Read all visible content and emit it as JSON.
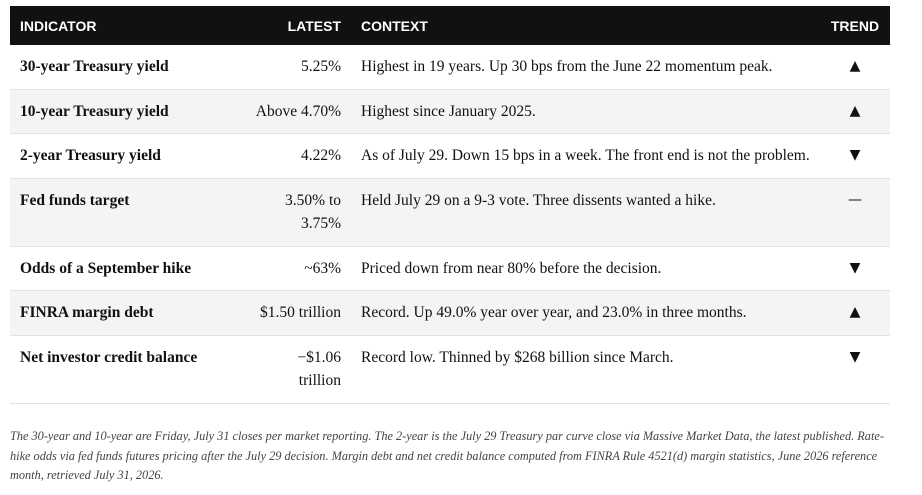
{
  "table": {
    "header": [
      "INDICATOR",
      "LATEST",
      "CONTEXT",
      "TREND"
    ],
    "rows": [
      [
        "30-year Treasury yield",
        "5.25%",
        "Highest in 19 years. Up 30 bps from the June 22 momentum peak.",
        "▲"
      ],
      [
        "10-year Treasury yield",
        "Above 4.70%",
        "Highest since January 2025.",
        "▲"
      ],
      [
        "2-year Treasury yield",
        "4.22%",
        "As of July 29. Down 15 bps in a week. The front end is not the problem.",
        "▼"
      ],
      [
        "Fed funds target",
        "3.50% to 3.75%",
        "Held July 29 on a 9-3 vote. Three dissents wanted a hike.",
        "—"
      ],
      [
        "Odds of a September hike",
        "~63%",
        "Priced down from near 80% before the decision.",
        "▼"
      ],
      [
        "FINRA margin debt",
        "$1.50 trillion",
        "Record. Up 49.0% year over year, and 23.0% in three months.",
        "▲"
      ],
      [
        "Net investor credit balance",
        "−$1.06 trillion",
        "Record low. Thinned by $268 billion since March.",
        "▼"
      ]
    ]
  },
  "footnote": "The 30-year and 10-year are Friday, July 31 closes per market reporting. The 2-year is the July 29 Treasury par curve close via Massive Market Data, the latest published. Rate-hike odds via fed funds futures pricing after the July 29 decision. Margin debt and net credit balance computed from FINRA Rule 4521(d) margin statistics, June 2026 reference month, retrieved July 31, 2026."
}
